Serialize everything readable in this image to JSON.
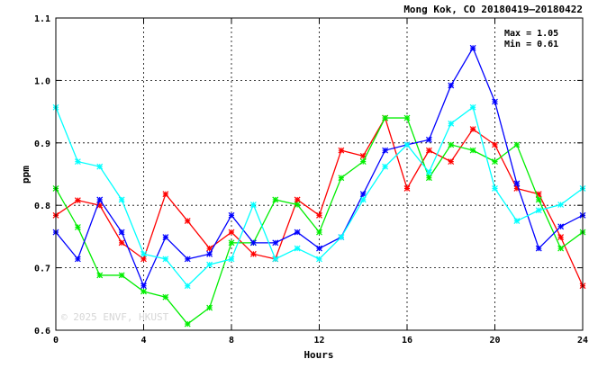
{
  "chart_data": {
    "type": "line",
    "title": "Mong Kok, CO 20180419—20180422",
    "xlabel": "Hours",
    "ylabel": "ppm",
    "xlim": [
      0,
      24
    ],
    "ylim": [
      0.6,
      1.1
    ],
    "xticks": [
      0,
      4,
      8,
      12,
      16,
      20,
      24
    ],
    "yticks": [
      0.6,
      0.7,
      0.8,
      0.9,
      1.0,
      1.1
    ],
    "ytick_labels": [
      "0.6",
      "0.7",
      "0.8",
      "0.9",
      "1.0",
      "1.1"
    ],
    "grid": true,
    "annotations": {
      "max": "Max = 1.05",
      "min": "Min = 0.61"
    },
    "watermark": "© 2025 ENVF, HKUST",
    "x": [
      0,
      1,
      2,
      3,
      4,
      5,
      6,
      7,
      8,
      9,
      10,
      11,
      12,
      13,
      14,
      15,
      16,
      17,
      18,
      19,
      20,
      21,
      22,
      23,
      24
    ],
    "series": [
      {
        "color": "#ff0000",
        "values": [
          0.784,
          0.808,
          0.8,
          0.74,
          0.714,
          0.818,
          0.775,
          0.731,
          0.757,
          0.722,
          0.714,
          0.809,
          0.784,
          0.888,
          0.879,
          0.94,
          0.827,
          0.888,
          0.87,
          0.922,
          0.897,
          0.827,
          0.818,
          0.749,
          0.671
        ]
      },
      {
        "color": "#00ee00",
        "values": [
          0.827,
          0.765,
          0.688,
          0.688,
          0.662,
          0.653,
          0.61,
          0.636,
          0.74,
          0.74,
          0.809,
          0.801,
          0.757,
          0.844,
          0.87,
          0.94,
          0.94,
          0.844,
          0.897,
          0.888,
          0.87,
          0.897,
          0.809,
          0.731,
          0.757
        ]
      },
      {
        "color": "#0000ff",
        "values": [
          0.757,
          0.714,
          0.809,
          0.757,
          0.671,
          0.749,
          0.714,
          0.722,
          0.784,
          0.74,
          0.74,
          0.757,
          0.731,
          0.749,
          0.818,
          0.888,
          0.897,
          0.905,
          0.992,
          1.052,
          0.966,
          0.835,
          0.731,
          0.766,
          0.784
        ]
      },
      {
        "color": "#00ffff",
        "values": [
          0.957,
          0.87,
          0.862,
          0.809,
          0.722,
          0.714,
          0.671,
          0.705,
          0.714,
          0.801,
          0.714,
          0.731,
          0.714,
          0.749,
          0.809,
          0.862,
          0.897,
          0.853,
          0.931,
          0.957,
          0.827,
          0.775,
          0.792,
          0.801,
          0.827
        ]
      }
    ]
  }
}
